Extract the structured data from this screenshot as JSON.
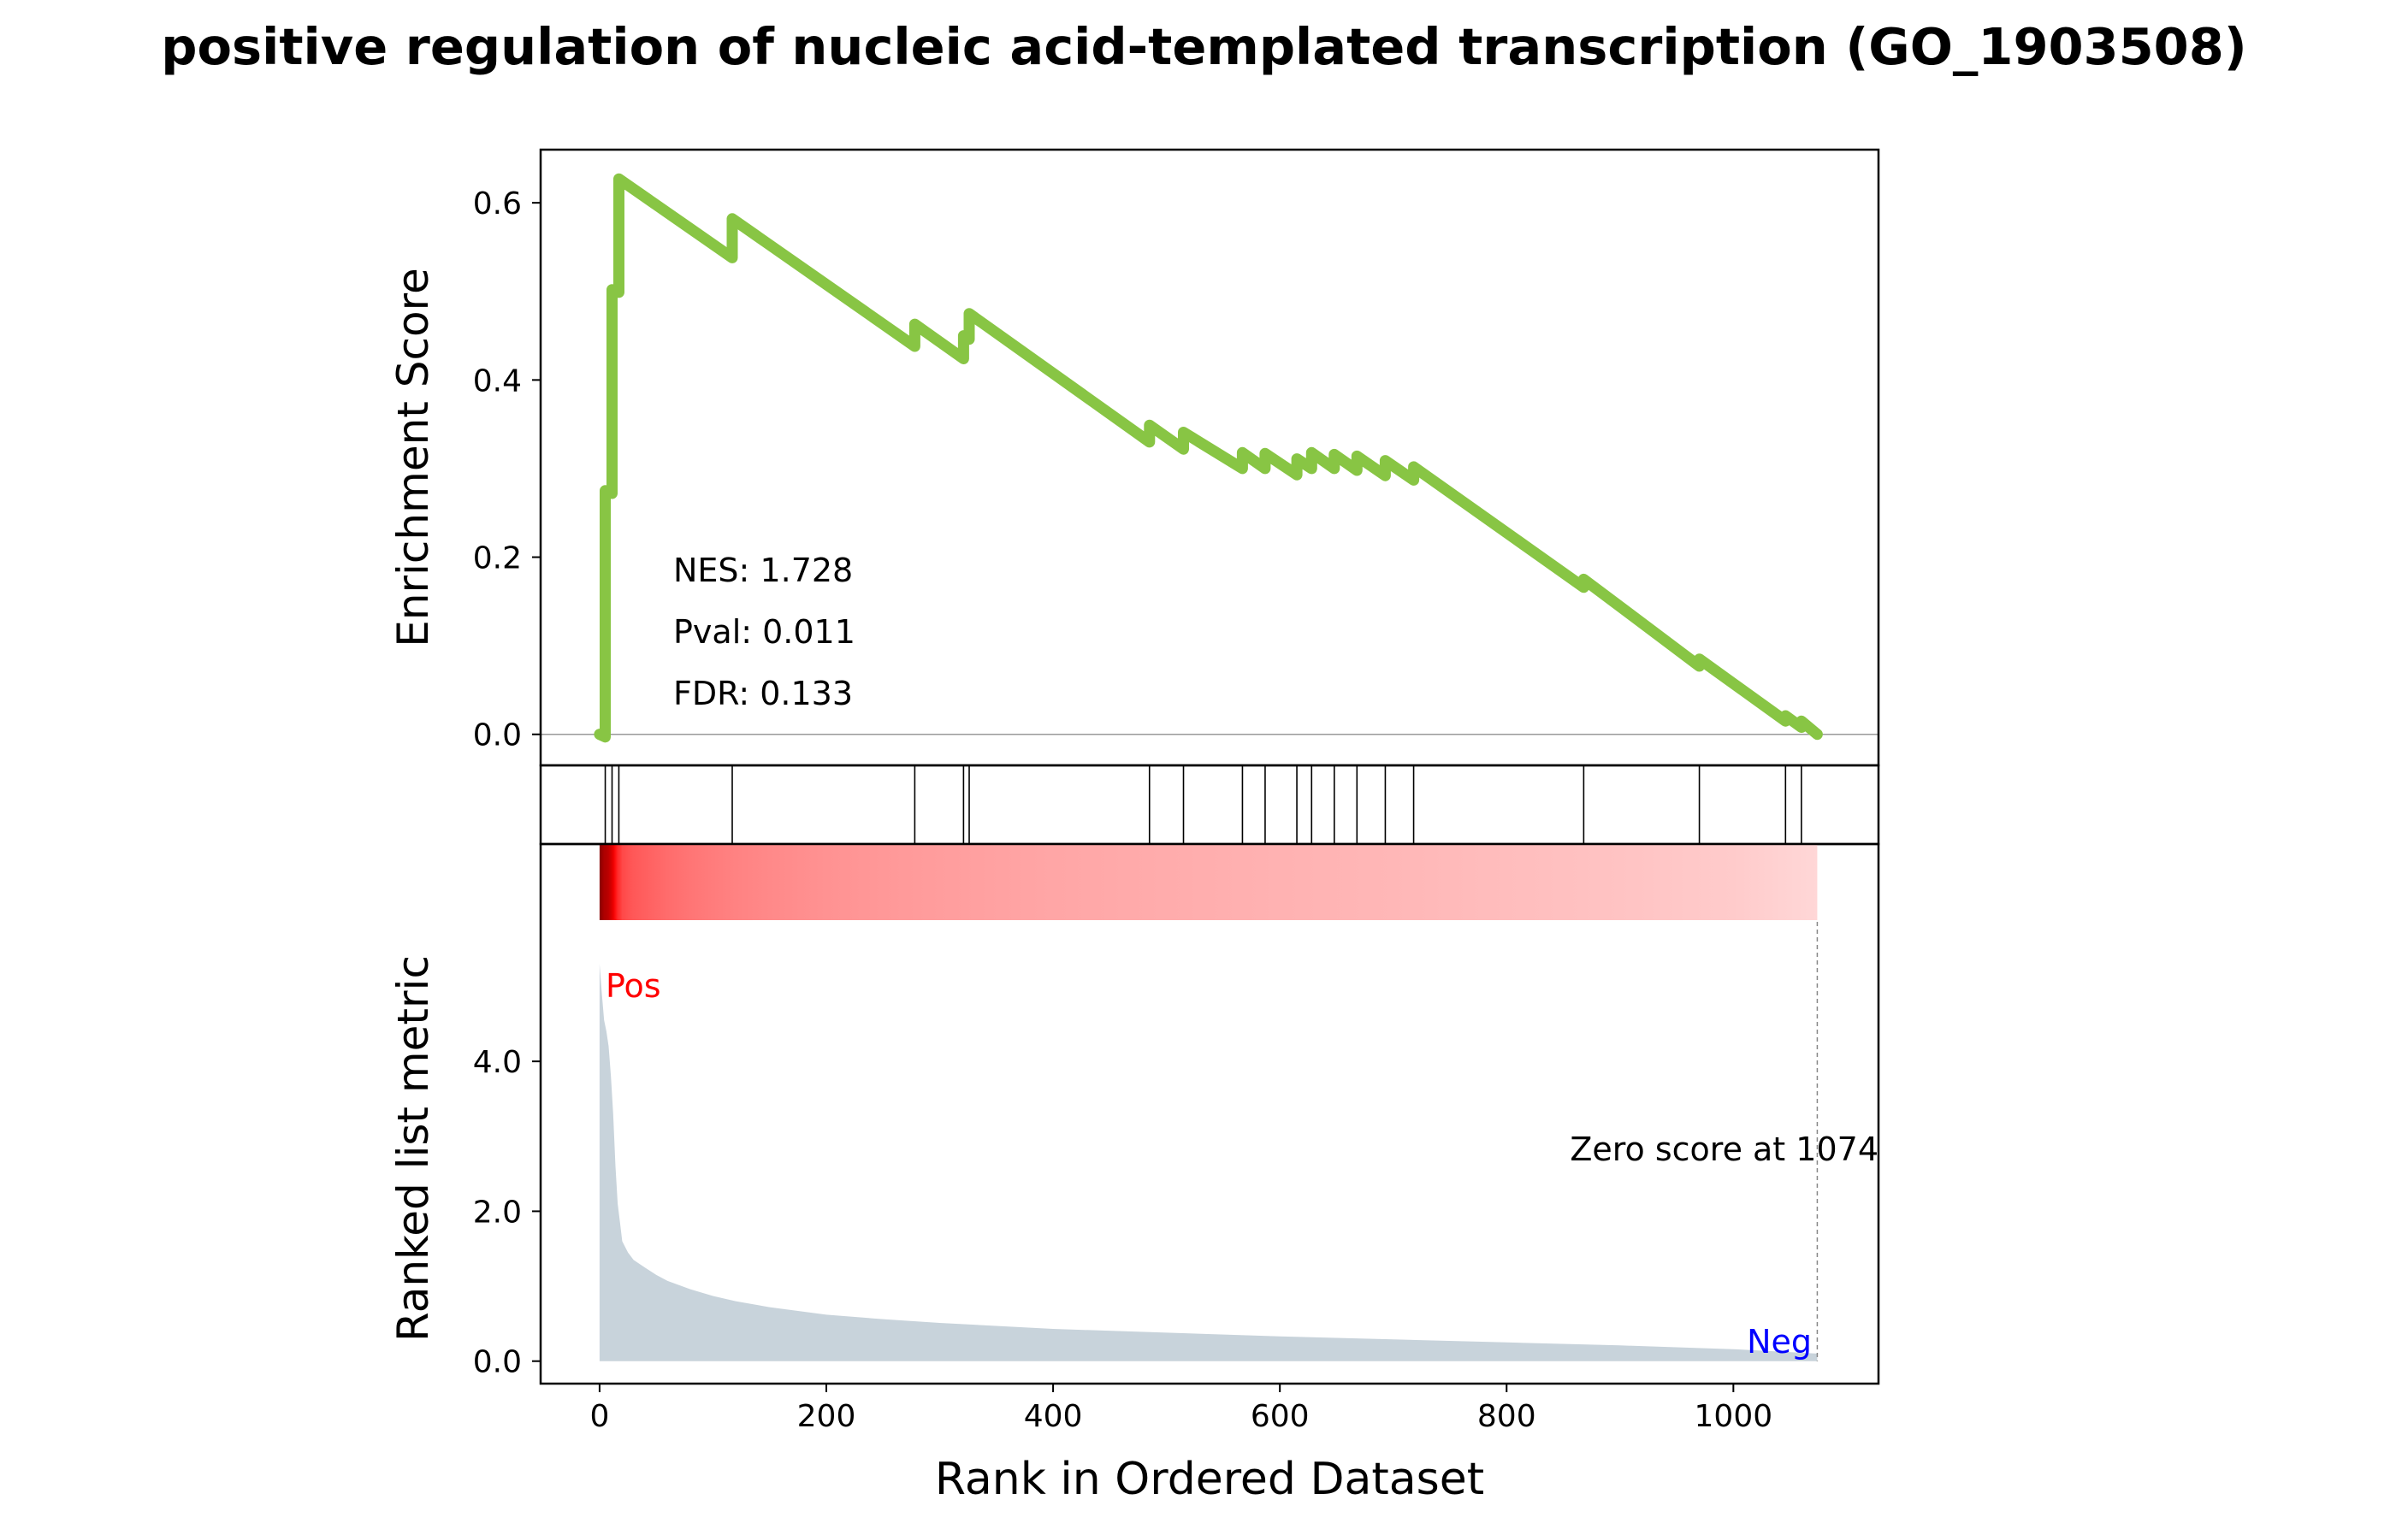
{
  "title": "positive regulation of nucleic acid-templated transcription (GO_1903508)",
  "chart_data": {
    "type": "line",
    "title": "positive regulation of nucleic acid-templated transcription (GO_1903508)",
    "xlabel": "Rank in Ordered Dataset",
    "xlim": [
      -52,
      1128
    ],
    "xticks": [
      0,
      200,
      400,
      600,
      800,
      1000
    ],
    "es_panel": {
      "ylabel": "Enrichment Score",
      "ylim": [
        -0.035,
        0.66
      ],
      "yticks": [
        "0.0",
        "0.2",
        "0.4",
        "0.6"
      ],
      "line_color": "#88C544",
      "zero_line": true,
      "stats": [
        "NES: 1.728",
        "Pval: 0.011",
        "FDR: 0.133"
      ],
      "series": [
        {
          "x": [
            0,
            5,
            5,
            11,
            11,
            17,
            17,
            117,
            117,
            278,
            278,
            321,
            321,
            326,
            326,
            485,
            485,
            515,
            515,
            567,
            567,
            587,
            587,
            615,
            615,
            628,
            628,
            648,
            648,
            668,
            668,
            693,
            693,
            718,
            718,
            868,
            868,
            970,
            970,
            1046,
            1046,
            1060,
            1060,
            1074
          ],
          "y": [
            0.0,
            -0.003,
            0.275,
            0.272,
            0.502,
            0.499,
            0.627,
            0.538,
            0.582,
            0.438,
            0.463,
            0.424,
            0.45,
            0.446,
            0.475,
            0.33,
            0.349,
            0.322,
            0.341,
            0.3,
            0.318,
            0.3,
            0.317,
            0.293,
            0.311,
            0.3,
            0.318,
            0.3,
            0.316,
            0.298,
            0.314,
            0.292,
            0.309,
            0.287,
            0.302,
            0.166,
            0.175,
            0.077,
            0.085,
            0.015,
            0.021,
            0.008,
            0.015,
            0.0
          ]
        }
      ]
    },
    "hits_panel": {
      "hit_ranks": [
        5,
        11,
        17,
        117,
        278,
        321,
        326,
        485,
        515,
        567,
        587,
        615,
        628,
        648,
        668,
        693,
        718,
        868,
        970,
        1046,
        1060
      ]
    },
    "metric_panel": {
      "ylabel": "Ranked list metric",
      "ylim": [
        -0.3,
        6.9
      ],
      "yticks": [
        "0.0",
        "2.0",
        "4.0"
      ],
      "fill_color": "#C8D3DB",
      "heat_color": "#FF0000",
      "pos_label": "Pos",
      "neg_label": "Neg",
      "pos_color": "#FF0000",
      "neg_color": "#0000FF",
      "zero_score_text": "Zero score at 1074",
      "zero_score_rank": 1074,
      "x": [
        0,
        2,
        4,
        6,
        8,
        10,
        12,
        14,
        16,
        18,
        20,
        25,
        30,
        40,
        50,
        60,
        80,
        100,
        120,
        150,
        200,
        250,
        300,
        400,
        500,
        600,
        700,
        800,
        900,
        1000,
        1074
      ],
      "values": [
        5.3,
        4.9,
        4.55,
        4.4,
        4.2,
        3.8,
        3.3,
        2.6,
        2.1,
        1.85,
        1.6,
        1.45,
        1.35,
        1.25,
        1.15,
        1.07,
        0.96,
        0.87,
        0.8,
        0.72,
        0.62,
        0.56,
        0.51,
        0.43,
        0.38,
        0.33,
        0.29,
        0.25,
        0.21,
        0.16,
        0.1
      ]
    }
  }
}
